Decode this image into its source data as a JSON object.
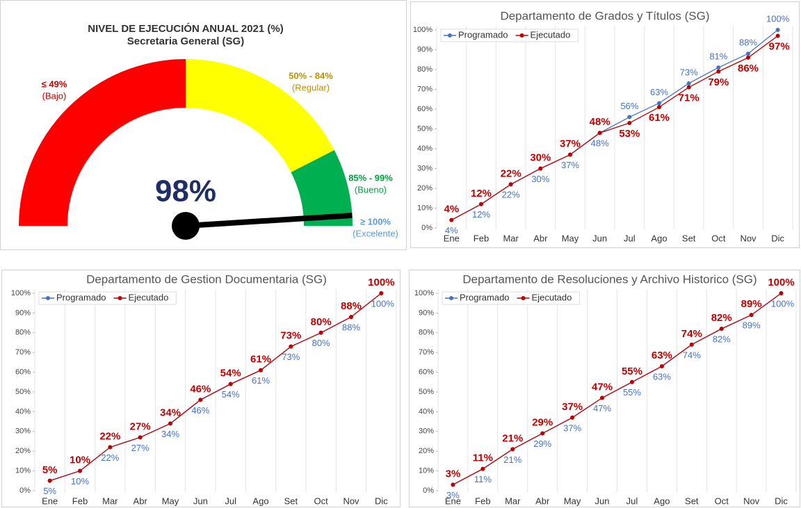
{
  "chart_data": [
    {
      "type": "gauge",
      "title": "NIVEL DE EJECUCIÓN ANUAL 2021 (%)",
      "subtitle": "Secretaria General (SG)",
      "value": 98,
      "value_label": "98%",
      "range": [
        0,
        100
      ],
      "bands": [
        {
          "from": 0,
          "to": 50,
          "color": "#ff0000",
          "text_color": "#c00000",
          "label": "≤ 49%",
          "sublabel": "(Bajo)"
        },
        {
          "from": 50,
          "to": 85,
          "color": "#ffff00",
          "text_color": "#bf9000",
          "label": "50% - 84%",
          "sublabel": "(Regular)"
        },
        {
          "from": 85,
          "to": 100,
          "color": "#00b050",
          "text_color": "#00a040",
          "label": "85% - 99%",
          "sublabel": "(Bueno)"
        },
        {
          "from": 100,
          "to": 100,
          "color": "#5b9bd5",
          "text_color": "#5b9bd5",
          "label": "≥ 100%",
          "sublabel": "(Excelente)"
        }
      ]
    },
    {
      "type": "line",
      "title": "Departamento de Grados y Títulos (SG)",
      "categories": [
        "Ene",
        "Feb",
        "Mar",
        "Abr",
        "May",
        "Jun",
        "Jul",
        "Ago",
        "Set",
        "Oct",
        "Nov",
        "Dic"
      ],
      "ylim": [
        0,
        100
      ],
      "yticks": [
        {
          "value": 0,
          "label": "0%"
        },
        {
          "value": 10,
          "label": "10%"
        },
        {
          "value": 20,
          "label": "20%"
        },
        {
          "value": 30,
          "label": "30%"
        },
        {
          "value": 40,
          "label": "40%"
        },
        {
          "value": 50,
          "label": "50%"
        },
        {
          "value": 60,
          "label": "60%"
        },
        {
          "value": 70,
          "label": "70%"
        },
        {
          "value": 80,
          "label": "80%"
        },
        {
          "value": 90,
          "label": "90%"
        },
        {
          "value": 100,
          "label": "100%"
        }
      ],
      "series": [
        {
          "name": "Programado",
          "color": "#4472c4",
          "values": [
            4,
            12,
            22,
            30,
            37,
            48,
            56,
            63,
            73,
            81,
            88,
            100
          ],
          "value_labels": [
            "4%",
            "12%",
            "22%",
            "30%",
            "37%",
            "48%",
            "56%",
            "63%",
            "73%",
            "81%",
            "88%",
            "100%"
          ]
        },
        {
          "name": "Ejecutado",
          "color": "#c00000",
          "values": [
            4,
            12,
            22,
            30,
            37,
            48,
            53,
            61,
            71,
            79,
            86,
            97
          ],
          "value_labels": [
            "4%",
            "12%",
            "22%",
            "30%",
            "37%",
            "48%",
            "53%",
            "61%",
            "71%",
            "79%",
            "86%",
            "97%"
          ]
        }
      ]
    },
    {
      "type": "line",
      "title": "Departamento de Gestion Documentaria (SG)",
      "categories": [
        "Ene",
        "Feb",
        "Mar",
        "Abr",
        "May",
        "Jun",
        "Jul",
        "Ago",
        "Set",
        "Oct",
        "Nov",
        "Dic"
      ],
      "ylim": [
        0,
        100
      ],
      "yticks": [
        {
          "value": 0,
          "label": "0%"
        },
        {
          "value": 10,
          "label": "10%"
        },
        {
          "value": 20,
          "label": "20%"
        },
        {
          "value": 30,
          "label": "30%"
        },
        {
          "value": 40,
          "label": "40%"
        },
        {
          "value": 50,
          "label": "50%"
        },
        {
          "value": 60,
          "label": "60%"
        },
        {
          "value": 70,
          "label": "70%"
        },
        {
          "value": 80,
          "label": "80%"
        },
        {
          "value": 90,
          "label": "90%"
        },
        {
          "value": 100,
          "label": "100%"
        }
      ],
      "series": [
        {
          "name": "Programado",
          "color": "#4472c4",
          "values": [
            5,
            10,
            22,
            27,
            34,
            46,
            54,
            61,
            73,
            80,
            88,
            100
          ],
          "value_labels": [
            "5%",
            "10%",
            "22%",
            "27%",
            "34%",
            "46%",
            "54%",
            "61%",
            "73%",
            "80%",
            "88%",
            "100%"
          ]
        },
        {
          "name": "Ejecutado",
          "color": "#c00000",
          "values": [
            5,
            10,
            22,
            27,
            34,
            46,
            54,
            61,
            73,
            80,
            88,
            100
          ],
          "value_labels": [
            "5%",
            "10%",
            "22%",
            "27%",
            "34%",
            "46%",
            "54%",
            "61%",
            "73%",
            "80%",
            "88%",
            "100%"
          ]
        }
      ]
    },
    {
      "type": "line",
      "title": "Departamento de Resoluciones y Archivo Historico (SG)",
      "categories": [
        "Ene",
        "Feb",
        "Mar",
        "Abr",
        "May",
        "Jun",
        "Jul",
        "Ago",
        "Set",
        "Oct",
        "Nov",
        "Dic"
      ],
      "ylim": [
        0,
        100
      ],
      "yticks": [
        {
          "value": 0,
          "label": "0%"
        },
        {
          "value": 10,
          "label": "10%"
        },
        {
          "value": 20,
          "label": "20%"
        },
        {
          "value": 30,
          "label": "30%"
        },
        {
          "value": 40,
          "label": "40%"
        },
        {
          "value": 50,
          "label": "50%"
        },
        {
          "value": 60,
          "label": "60%"
        },
        {
          "value": 70,
          "label": "70%"
        },
        {
          "value": 80,
          "label": "80%"
        },
        {
          "value": 90,
          "label": "90%"
        },
        {
          "value": 100,
          "label": "100%"
        }
      ],
      "series": [
        {
          "name": "Programado",
          "color": "#4472c4",
          "values": [
            3,
            11,
            21,
            29,
            37,
            47,
            55,
            63,
            74,
            82,
            89,
            100
          ],
          "value_labels": [
            "3%",
            "11%",
            "21%",
            "29%",
            "37%",
            "47%",
            "55%",
            "63%",
            "74%",
            "82%",
            "89%",
            "100%"
          ]
        },
        {
          "name": "Ejecutado",
          "color": "#c00000",
          "values": [
            3,
            11,
            21,
            29,
            37,
            47,
            55,
            63,
            74,
            82,
            89,
            100
          ],
          "value_labels": [
            "3%",
            "11%",
            "21%",
            "29%",
            "37%",
            "47%",
            "55%",
            "63%",
            "74%",
            "82%",
            "89%",
            "100%"
          ]
        }
      ]
    }
  ]
}
